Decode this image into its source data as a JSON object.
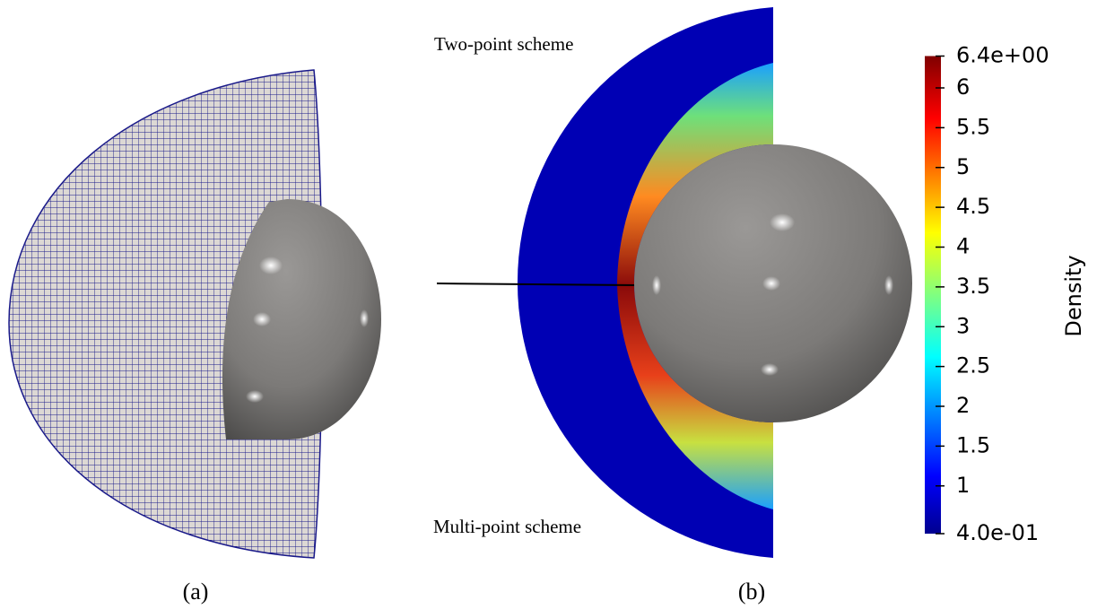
{
  "panels": [
    {
      "label": "(a)"
    },
    {
      "label": "(b)",
      "annotations": [
        "Two-point scheme",
        "Multi-point scheme"
      ]
    }
  ],
  "colorbar": {
    "title": "Density",
    "range": [
      0.4,
      6.4
    ],
    "ticks": [
      {
        "value": 6.4,
        "label": "6.4e+00"
      },
      6,
      5.5,
      5,
      4.5,
      4,
      3.5,
      3,
      2.5,
      2,
      1.5,
      1,
      {
        "value": 0.4,
        "label": "4.0e-01"
      }
    ]
  }
}
